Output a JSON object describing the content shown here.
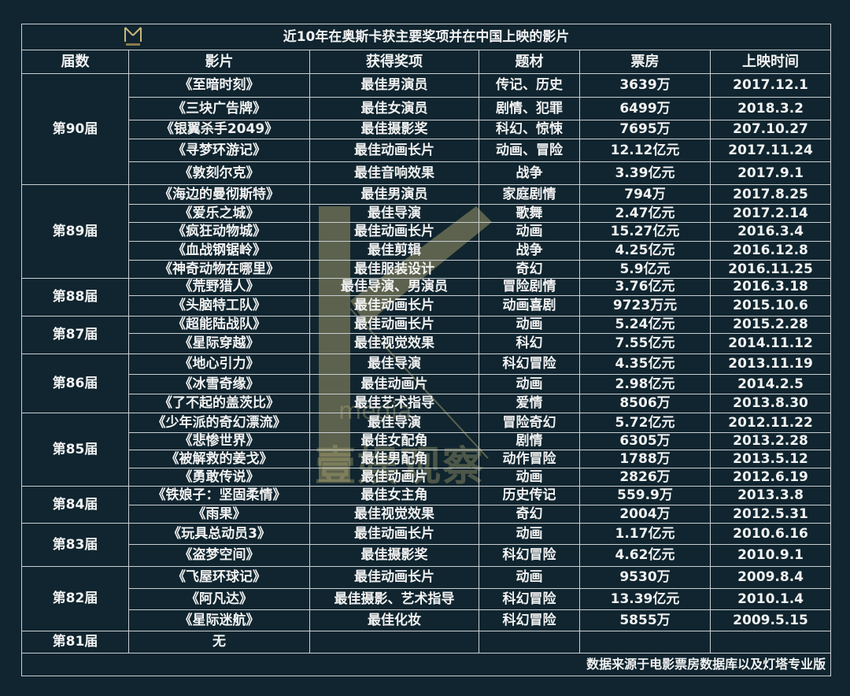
{
  "title": "近10年在奥斯卡获主要奖项并在中国上映的影片",
  "logo_text": "壹娱观察",
  "watermark": {
    "text": "壹娱观察",
    "sub": "media",
    "color": "#b8ad72"
  },
  "headers": [
    "届数",
    "影片",
    "获得奖项",
    "题材",
    "票房",
    "上映时间"
  ],
  "groups": [
    {
      "session": "第90届",
      "rows": [
        [
          "《至暗时刻》",
          "最佳男演员",
          "传记、历史",
          "3639万",
          "2017.12.1"
        ],
        [
          "《三块广告牌》",
          "最佳女演员",
          "剧情、犯罪",
          "6499万",
          "2018.3.2"
        ],
        [
          "《银翼杀手2049》",
          "最佳摄影奖",
          "科幻、惊悚",
          "7695万",
          "207.10.27"
        ],
        [
          "《寻梦环游记》",
          "最佳动画长片",
          "动画、冒险",
          "12.12亿元",
          "2017.11.24"
        ],
        [
          "《敦刻尔克》",
          "最佳音响效果",
          "战争",
          "3.39亿元",
          "2017.9.1"
        ]
      ]
    },
    {
      "session": "第89届",
      "rows": [
        [
          "《海边的曼彻斯特》",
          "最佳男演员",
          "家庭剧情",
          "794万",
          "2017.8.25"
        ],
        [
          "《爱乐之城》",
          "最佳导演",
          "歌舞",
          "2.47亿元",
          "2017.2.14"
        ],
        [
          "《疯狂动物城》",
          "最佳动画长片",
          "动画",
          "15.27亿元",
          "2016.3.4"
        ],
        [
          "《血战钢锯岭》",
          "最佳剪辑",
          "战争",
          "4.25亿元",
          "2016.12.8"
        ],
        [
          "《神奇动物在哪里》",
          "最佳服装设计",
          "奇幻",
          "5.9亿元",
          "2016.11.25"
        ]
      ]
    },
    {
      "session": "第88届",
      "rows": [
        [
          "《荒野猎人》",
          "最佳导演、男演员",
          "冒险剧情",
          "3.76亿元",
          "2016.3.18"
        ],
        [
          "《头脑特工队》",
          "最佳动画长片",
          "动画喜剧",
          "9723万元",
          "2015.10.6"
        ]
      ]
    },
    {
      "session": "第87届",
      "rows": [
        [
          "《超能陆战队》",
          "最佳动画长片",
          "动画",
          "5.24亿元",
          "2015.2.28"
        ],
        [
          "《星际穿越》",
          "最佳视觉效果",
          "科幻",
          "7.55亿元",
          "2014.11.12"
        ]
      ]
    },
    {
      "session": "第86届",
      "rows": [
        [
          "《地心引力》",
          "最佳导演",
          "科幻冒险",
          "4.35亿元",
          "2013.11.19"
        ],
        [
          "《冰雪奇缘》",
          "最佳动画片",
          "动画",
          "2.98亿元",
          "2014.2.5"
        ],
        [
          "《了不起的盖茨比》",
          "最佳艺术指导",
          "爱情",
          "8506万",
          "2013.8.30"
        ]
      ]
    },
    {
      "session": "第85届",
      "rows": [
        [
          "《少年派的奇幻漂流》",
          "最佳导演",
          "冒险奇幻",
          "5.72亿元",
          "2012.11.22"
        ],
        [
          "《悲惨世界》",
          "最佳女配角",
          "剧情",
          "6305万",
          "2013.2.28"
        ],
        [
          "《被解救的姜戈》",
          "最佳男配角",
          "动作冒险",
          "1788万",
          "2013.5.12"
        ],
        [
          "《勇敢传说》",
          "最佳动画片",
          "动画",
          "2826万",
          "2012.6.19"
        ]
      ]
    },
    {
      "session": "第84届",
      "rows": [
        [
          "《铁娘子：坚固柔情》",
          "最佳女主角",
          "历史传记",
          "559.9万",
          "2013.3.8"
        ],
        [
          "《雨果》",
          "最佳视觉效果",
          "奇幻",
          "2004万",
          "2012.5.31"
        ]
      ]
    },
    {
      "session": "第83届",
      "rows": [
        [
          "《玩具总动员3》",
          "最佳动画长片",
          "动画",
          "1.17亿元",
          "2010.6.16"
        ],
        [
          "《盗梦空间》",
          "最佳摄影奖",
          "科幻冒险",
          "4.62亿元",
          "2010.9.1"
        ]
      ]
    },
    {
      "session": "第82届",
      "rows": [
        [
          "《飞屋环球记》",
          "最佳动画长片",
          "动画",
          "9530万",
          "2009.8.4"
        ],
        [
          "《阿凡达》",
          "最佳摄影、艺术指导",
          "科幻冒险",
          "13.39亿元",
          "2010.1.4"
        ],
        [
          "《星际迷航》",
          "最佳化妆",
          "科幻冒险",
          "5855万",
          "2009.5.15"
        ]
      ]
    },
    {
      "session": "第81届",
      "rows": [
        [
          "无",
          "",
          "",
          "",
          ""
        ]
      ]
    }
  ],
  "footer": "数据来源于电影票房数据库以及灯塔专业版"
}
